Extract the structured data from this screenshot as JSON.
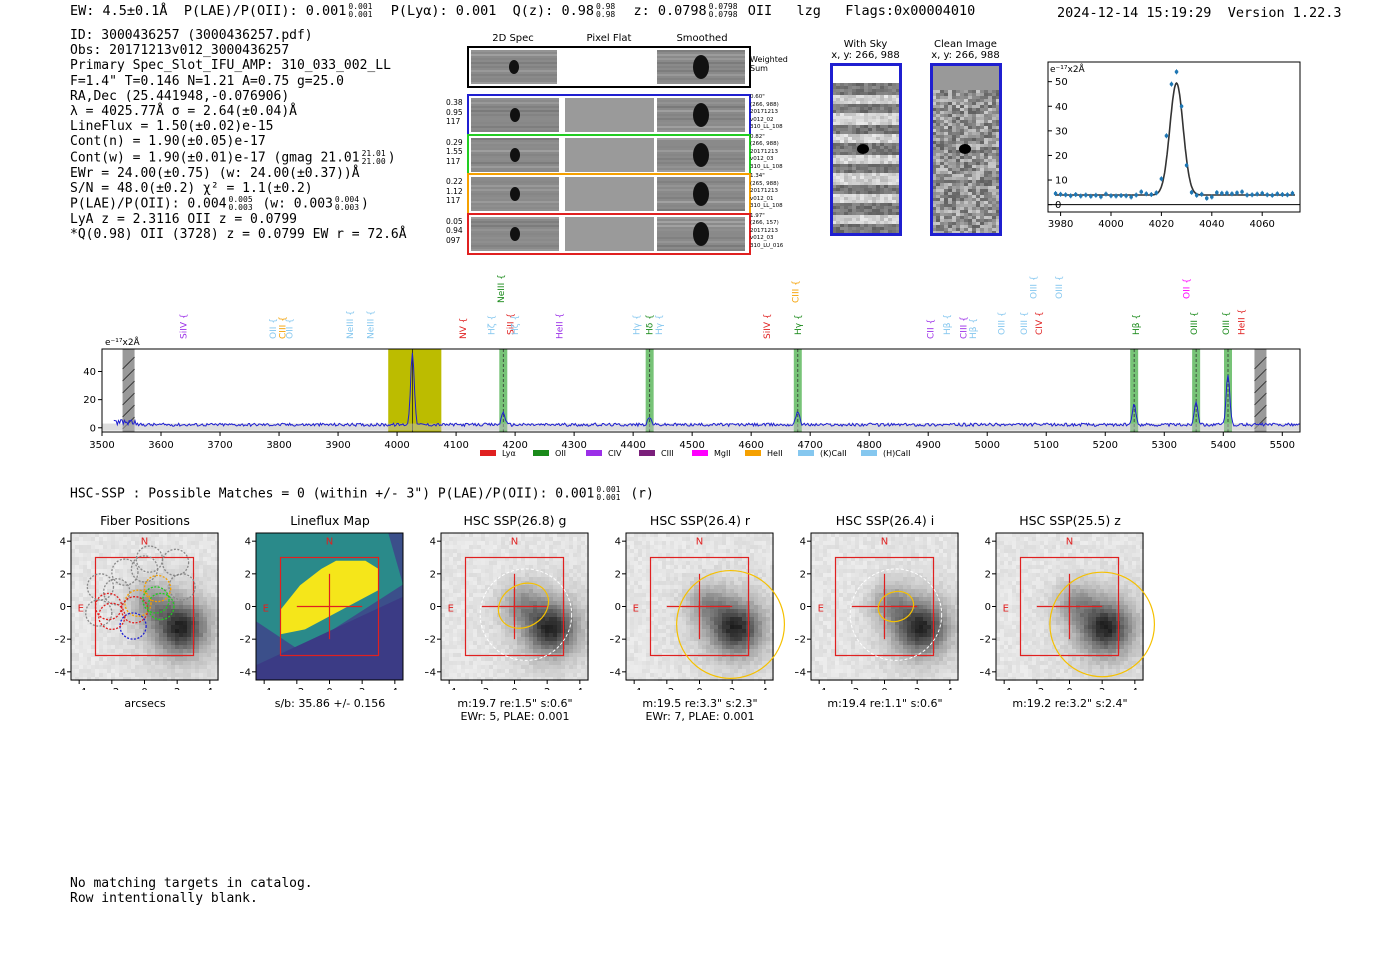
{
  "header": {
    "ew": "EW: 4.5±0.1Å",
    "plae_label": "P(LAE)/P(OII): 0.001",
    "plae_hi": "0.001",
    "plae_lo": "0.001",
    "plya": "P(Lyα): 0.001",
    "qz_label": "Q(z): 0.98",
    "qz_hi": "0.98",
    "qz_lo": "0.98",
    "z_label": "z: 0.0798",
    "z_hi": "0.0798",
    "z_lo": "0.0798",
    "line": "OII",
    "lzg": "lzg",
    "flags": "Flags:0x00004010",
    "timestamp": "2024-12-14 15:19:29",
    "version": "Version 1.22.3"
  },
  "info": {
    "id": "ID: 3000436257 (3000436257.pdf)",
    "obs": "Obs: 20171213v012_3000436257",
    "slot": "Primary Spec_Slot_IFU_AMP: 310_033_002_LL",
    "params": "F=1.4\"  T=0.146  N=1.21  A=0.75  g=25.0",
    "radec": "RA,Dec (25.441948,-0.076906)",
    "lambda": "λ = 4025.77Å  σ = 2.64(±0.04)Å",
    "lineflux": "LineFlux = 1.50(±0.02)e-15",
    "contn": "Cont(n) = 1.90(±0.05)e-17",
    "contw": "Cont(w) = 1.90(±0.01)e-17 (gmag 21.01",
    "contw_hi": "21.01",
    "contw_lo": "21.00",
    "ewr": "EWr = 24.00(±0.75) (w: 24.00(±0.37))Å",
    "sn": "S/N = 48.0(±0.2)  χ² = 1.1(±0.2)",
    "plae": "P(LAE)/P(OII): 0.004",
    "plae_hi": "0.005",
    "plae_lo": "0.003",
    "plae_w": "(w: 0.003",
    "plae_w_hi": "0.004",
    "plae_w_lo": "0.003",
    "lya": "LyA z = 2.3116  OII z = 0.0799",
    "best": "*Q(0.98) OII (3728) z = 0.0799  EW r = 72.6Å"
  },
  "cutouts": {
    "col1": "2D Spec",
    "col2": "Pixel Flat",
    "col3": "Smoothed",
    "weighted": "Weighted Sum",
    "rows": [
      {
        "n1": "0.38",
        "n2": "0.95",
        "n3": "117",
        "meta": [
          "0.60\"",
          "(266, 988)",
          "20171213",
          "v012_02",
          "310_LL_108"
        ],
        "color": "#1f1fd0"
      },
      {
        "n1": "0.29",
        "n2": "1.55",
        "n3": "117",
        "meta": [
          "0.82\"",
          "(266, 988)",
          "20171213",
          "v012_03",
          "310_LL_108"
        ],
        "color": "#22cc22"
      },
      {
        "n1": "0.22",
        "n2": "1.12",
        "n3": "117",
        "meta": [
          "1.34\"",
          "(265, 988)",
          "20171213",
          "v012_01",
          "310_LL_108"
        ],
        "color": "#f5a000"
      },
      {
        "n1": "0.05",
        "n2": "0.94",
        "n3": "097",
        "meta": [
          "1.97\"",
          "(266, 157)",
          "20171213",
          "v012_03",
          "310_LU_016"
        ],
        "color": "#e02020"
      }
    ]
  },
  "sky": {
    "with_sky": "With Sky",
    "with_sky_xy": "x, y: 266, 988",
    "clean": "Clean Image",
    "clean_xy": "x, y: 266, 988"
  },
  "zoom_chart": {
    "type": "scatter",
    "unit_label": "e⁻¹⁷x2Å",
    "xlim": [
      3975,
      4075
    ],
    "ylim": [
      -3,
      58
    ],
    "xticks": [
      3980,
      4000,
      4020,
      4040,
      4060
    ],
    "yticks": [
      0,
      10,
      20,
      30,
      40,
      50
    ],
    "fit_center": 4026,
    "fit_sigma": 2.64,
    "fit_amp": 45.5,
    "continuum": 3.9,
    "points_x": [
      3978,
      3980,
      3982,
      3984,
      3986,
      3988,
      3990,
      3992,
      3994,
      3996,
      3998,
      4000,
      4002,
      4004,
      4006,
      4008,
      4010,
      4012,
      4014,
      4016,
      4018,
      4020,
      4022,
      4024,
      4026,
      4028,
      4030,
      4032,
      4034,
      4036,
      4038,
      4040,
      4042,
      4044,
      4046,
      4048,
      4050,
      4052,
      4054,
      4056,
      4058,
      4060,
      4062,
      4064,
      4066,
      4068,
      4070,
      4072
    ],
    "points_y": [
      4.5,
      4.2,
      4.0,
      3.6,
      4.1,
      3.5,
      3.9,
      3.4,
      3.8,
      3.2,
      4.3,
      3.6,
      3.5,
      3.7,
      3.6,
      3.1,
      3.9,
      5.2,
      4.4,
      4.1,
      4.8,
      10.5,
      28,
      49,
      54,
      40,
      16,
      5,
      3.8,
      4.2,
      2.6,
      3.1,
      4.9,
      4.6,
      4.7,
      4.4,
      4.8,
      5.2,
      3.9,
      4.0,
      4.3,
      4.6,
      4.0,
      3.8,
      4.4,
      4.1,
      4.0,
      4.6
    ]
  },
  "spectrum": {
    "type": "line",
    "unit_label": "e⁻¹⁷x2Å",
    "xlim": [
      3500,
      5530
    ],
    "ylim": [
      -3,
      56
    ],
    "xticks": [
      3500,
      3600,
      3700,
      3800,
      3900,
      4000,
      4100,
      4200,
      4300,
      4400,
      4500,
      4600,
      4700,
      4800,
      4900,
      5000,
      5100,
      5200,
      5300,
      5400,
      5500
    ],
    "yticks": [
      0,
      20,
      40
    ],
    "yellow_band": [
      3985,
      4075
    ],
    "obs_line": 4026,
    "green_bands": [
      4180,
      4428,
      4679,
      5249,
      5354,
      5408
    ],
    "hatched": [
      3545,
      5463
    ],
    "peaks": [
      {
        "x": 4026,
        "h": 52,
        "s": 3
      },
      {
        "x": 4180,
        "h": 9,
        "s": 3
      },
      {
        "x": 4428,
        "h": 5,
        "s": 3
      },
      {
        "x": 4679,
        "h": 10,
        "s": 3
      },
      {
        "x": 5249,
        "h": 14,
        "s": 3
      },
      {
        "x": 5354,
        "h": 17,
        "s": 3
      },
      {
        "x": 5408,
        "h": 36,
        "s": 3
      }
    ],
    "labels": [
      {
        "x": 3638,
        "t": "SiIV",
        "c": "#9b2fe8",
        "lvl": 0
      },
      {
        "x": 3790,
        "t": "OII",
        "c": "#85c7ef",
        "lvl": 0
      },
      {
        "x": 3806,
        "t": "CIII",
        "c": "#f5a000",
        "lvl": 0
      },
      {
        "x": 3818,
        "t": "OII",
        "c": "#85c7ef",
        "lvl": 0
      },
      {
        "x": 3920,
        "t": "NeIII",
        "c": "#85c7ef",
        "lvl": 0
      },
      {
        "x": 3955,
        "t": "NeIII",
        "c": "#85c7ef",
        "lvl": 0
      },
      {
        "x": 4112,
        "t": "NV",
        "c": "#e02020",
        "lvl": 0
      },
      {
        "x": 4160,
        "t": "Hζ",
        "c": "#85c7ef",
        "lvl": 1
      },
      {
        "x": 4176,
        "t": "NeIII",
        "c": "#1a8a1a",
        "lvl": 2
      },
      {
        "x": 4192,
        "t": "SiII",
        "c": "#e02020",
        "lvl": 1
      },
      {
        "x": 4200,
        "t": "Hζ",
        "c": "#85c7ef",
        "lvl": 1
      },
      {
        "x": 4275,
        "t": "HeII",
        "c": "#9b2fe8",
        "lvl": 0
      },
      {
        "x": 4406,
        "t": "Hγ",
        "c": "#85c7ef",
        "lvl": 1
      },
      {
        "x": 4428,
        "t": "Hδ",
        "c": "#1a8a1a",
        "lvl": 1
      },
      {
        "x": 4444,
        "t": "Hγ",
        "c": "#85c7ef",
        "lvl": 1
      },
      {
        "x": 4627,
        "t": "SiIV",
        "c": "#e02020",
        "lvl": 0
      },
      {
        "x": 4675,
        "t": "CIII",
        "c": "#f5a000",
        "lvl": 2
      },
      {
        "x": 4679,
        "t": "Hγ",
        "c": "#1a8a1a",
        "lvl": 1
      },
      {
        "x": 4904,
        "t": "CII",
        "c": "#9b2fe8",
        "lvl": 0
      },
      {
        "x": 4932,
        "t": "Hβ",
        "c": "#85c7ef",
        "lvl": 1
      },
      {
        "x": 4960,
        "t": "CIII",
        "c": "#9b2fe8",
        "lvl": 0
      },
      {
        "x": 4976,
        "t": "Hβ",
        "c": "#85c7ef",
        "lvl": 0
      },
      {
        "x": 5024,
        "t": "OIII",
        "c": "#85c7ef",
        "lvl": 1
      },
      {
        "x": 5062,
        "t": "OIII",
        "c": "#85c7ef",
        "lvl": 1
      },
      {
        "x": 5088,
        "t": "CIV",
        "c": "#e02020",
        "lvl": 1
      },
      {
        "x": 5078,
        "t": "OIII",
        "c": "#85c7ef",
        "lvl": 3
      },
      {
        "x": 5122,
        "t": "OIII",
        "c": "#85c7ef",
        "lvl": 3
      },
      {
        "x": 5252,
        "t": "Hβ",
        "c": "#1a8a1a",
        "lvl": 1
      },
      {
        "x": 5338,
        "t": "OII",
        "c": "#ff00ff",
        "lvl": 3
      },
      {
        "x": 5350,
        "t": "OIII",
        "c": "#1a8a1a",
        "lvl": 1
      },
      {
        "x": 5405,
        "t": "OIII",
        "c": "#1a8a1a",
        "lvl": 1
      },
      {
        "x": 5431,
        "t": "HeII",
        "c": "#e02020",
        "lvl": 1
      }
    ],
    "legend": [
      {
        "t": "Lyα",
        "c": "#e02020"
      },
      {
        "t": "OII",
        "c": "#1a8a1a"
      },
      {
        "t": "CIV",
        "c": "#9b2fe8"
      },
      {
        "t": "CIII",
        "c": "#7a1f7a"
      },
      {
        "t": "MgII",
        "c": "#ff00ff"
      },
      {
        "t": "HeII",
        "c": "#f5a000"
      },
      {
        "t": "(K)CaII",
        "c": "#85c7ef"
      },
      {
        "t": "(H)CaII",
        "c": "#85c7ef"
      }
    ]
  },
  "hsc": {
    "title": "HSC-SSP : Possible Matches = 0 (within +/- 3\")  P(LAE)/P(OII): 0.001",
    "title_hi": "0.001",
    "title_lo": "0.001",
    "title_band": "(r)",
    "axis_ticks": [
      -4,
      -2,
      0,
      2,
      4
    ],
    "north": "N",
    "east": "E",
    "panels": [
      {
        "title": "Fiber Positions",
        "cap1": "arcsecs",
        "cap2": "",
        "kind": "fiber"
      },
      {
        "title": "Lineflux Map",
        "cap1": "s/b: 35.86 +/- 0.156",
        "cap2": "",
        "kind": "flux"
      },
      {
        "title": "HSC SSP(26.8) g",
        "cap1": "m:19.7  re:1.5\"  s:0.6\"",
        "cap2": "EWr: 5, PLAE: 0.001",
        "kind": "img",
        "ell": [
          0.55,
          0.05,
          1.6,
          1.3,
          -30
        ],
        "circ": 2.8
      },
      {
        "title": "HSC SSP(26.4) r",
        "cap1": "m:19.5  re:3.3\"  s:2.3\"",
        "cap2": "EWr: 7, PLAE: 0.001",
        "kind": "img",
        "ell": [
          1.9,
          -1.1,
          3.3,
          3.3,
          0
        ],
        "circ": 0
      },
      {
        "title": "HSC SSP(26.4) i",
        "cap1": "m:19.4  re:1.1\"  s:0.6\"",
        "cap2": "",
        "kind": "img",
        "ell": [
          0.7,
          0.0,
          1.1,
          0.9,
          -20
        ],
        "circ": 2.8
      },
      {
        "title": "HSC SSP(25.5) z",
        "cap1": "m:19.2  re:3.2\"  s:2.4\"",
        "cap2": "",
        "kind": "img",
        "ell": [
          2.0,
          -1.1,
          3.2,
          3.2,
          0
        ],
        "circ": 0
      }
    ]
  },
  "footer": {
    "line1": "No matching targets in catalog.",
    "line2": "Row intentionally blank."
  }
}
